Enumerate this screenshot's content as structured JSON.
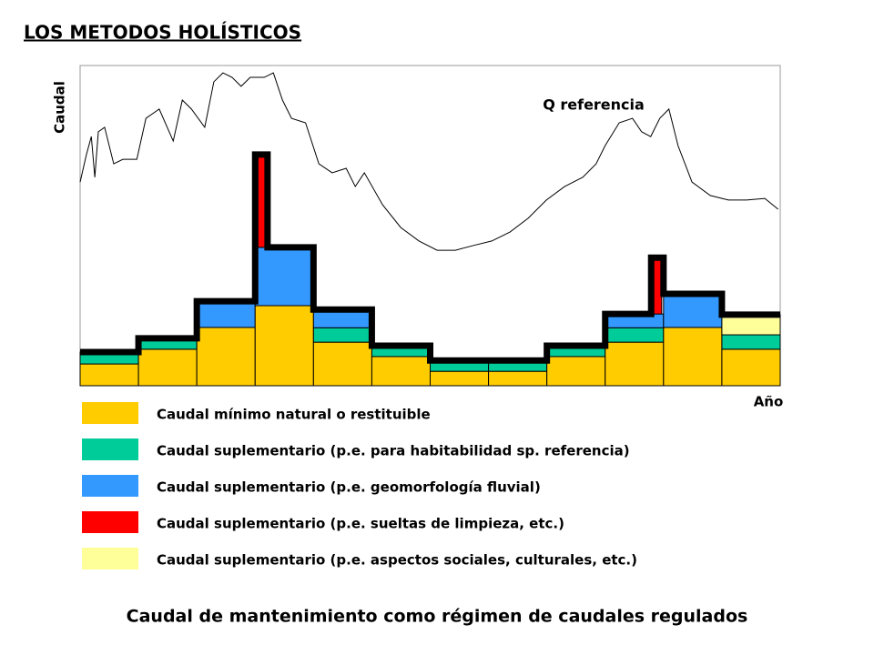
{
  "chart_data": {
    "type": "bar",
    "stacked": true,
    "title": "LOS METODOS HOLÍSTICOS",
    "y_label": "Caudal",
    "x_label": "Año",
    "caption": "Caudal de mantenimiento como régimen de caudales regulados",
    "categories": [
      null,
      null,
      null,
      null,
      null,
      null,
      null,
      null,
      null,
      null,
      null,
      null
    ],
    "ylim": [
      0,
      100
    ],
    "yticks": [],
    "series": [
      {
        "name": "Caudal mínimo natural o restituible",
        "color": "#ffcc00",
        "values": [
          6.8,
          11.4,
          18.2,
          25,
          13.6,
          9.1,
          4.5,
          4.5,
          9.1,
          13.6,
          18.2,
          11.4
        ]
      },
      {
        "name": "Caudal suplementario (p.e. para habitabilidad sp. referencia)",
        "color": "#00cc99",
        "values": [
          3.7,
          3.4,
          0,
          0,
          4.5,
          3.4,
          3.4,
          3.4,
          3.4,
          4.5,
          0,
          4.5
        ]
      },
      {
        "name": "Caudal suplementario (p.e. geomorfología fluvial)",
        "color": "#3399ff",
        "values": [
          0,
          0,
          8.2,
          18.2,
          5.7,
          0,
          0,
          0,
          0,
          4.3,
          10.5,
          0
        ]
      },
      {
        "name": "Caudal suplementario (p.e. sueltas de limpieza, etc.)",
        "color": "#ff0000",
        "narrow": true,
        "values": [
          0,
          0,
          0,
          29,
          0,
          0,
          0,
          0,
          0,
          17.6,
          0,
          0
        ]
      },
      {
        "name": "Caudal suplementario (p.e. aspectos sociales, culturales, etc.)",
        "color": "#ffff99",
        "values": [
          0,
          0,
          0,
          0,
          0,
          0,
          0,
          0,
          0,
          0,
          0,
          6.3
        ]
      }
    ],
    "reference_line": {
      "name": "Q referencia",
      "color": "#000000",
      "xlim": [
        0,
        100
      ],
      "x": [
        0,
        0.9,
        1.6,
        2.1,
        2.6,
        3.5,
        4.8,
        6.1,
        8.1,
        9.4,
        11.3,
        13.3,
        14.6,
        15.9,
        17.8,
        19.1,
        20.4,
        21.7,
        23.0,
        24.3,
        26.3,
        27.6,
        28.9,
        30.2,
        32.2,
        34.1,
        36.0,
        38.0,
        39.3,
        40.6,
        43.2,
        45.8,
        48.4,
        51.0,
        53.6,
        56.2,
        58.8,
        61.4,
        64.0,
        66.6,
        69.2,
        71.8,
        73.7,
        75.0,
        77.0,
        78.9,
        80.2,
        81.5,
        82.8,
        84.1,
        85.4,
        87.4,
        90.0,
        92.6,
        95.2,
        97.8,
        99.7
      ],
      "values": [
        63.6,
        72.2,
        77.8,
        65.1,
        79.3,
        80.7,
        69.3,
        70.7,
        70.7,
        83.5,
        86.4,
        76.4,
        89.2,
        86.4,
        80.7,
        94.9,
        97.7,
        96.3,
        93.5,
        96.3,
        96.3,
        97.7,
        89.2,
        83.5,
        82.1,
        69.3,
        66.5,
        67.9,
        62.2,
        66.5,
        56.5,
        49.4,
        45.2,
        42.3,
        42.3,
        43.8,
        45.2,
        48.0,
        52.3,
        58.0,
        62.2,
        65.1,
        69.3,
        75.0,
        82.1,
        83.5,
        79.3,
        77.8,
        83.5,
        86.4,
        75.0,
        63.6,
        59.4,
        58.0,
        58.0,
        58.5,
        55.1
      ]
    }
  }
}
